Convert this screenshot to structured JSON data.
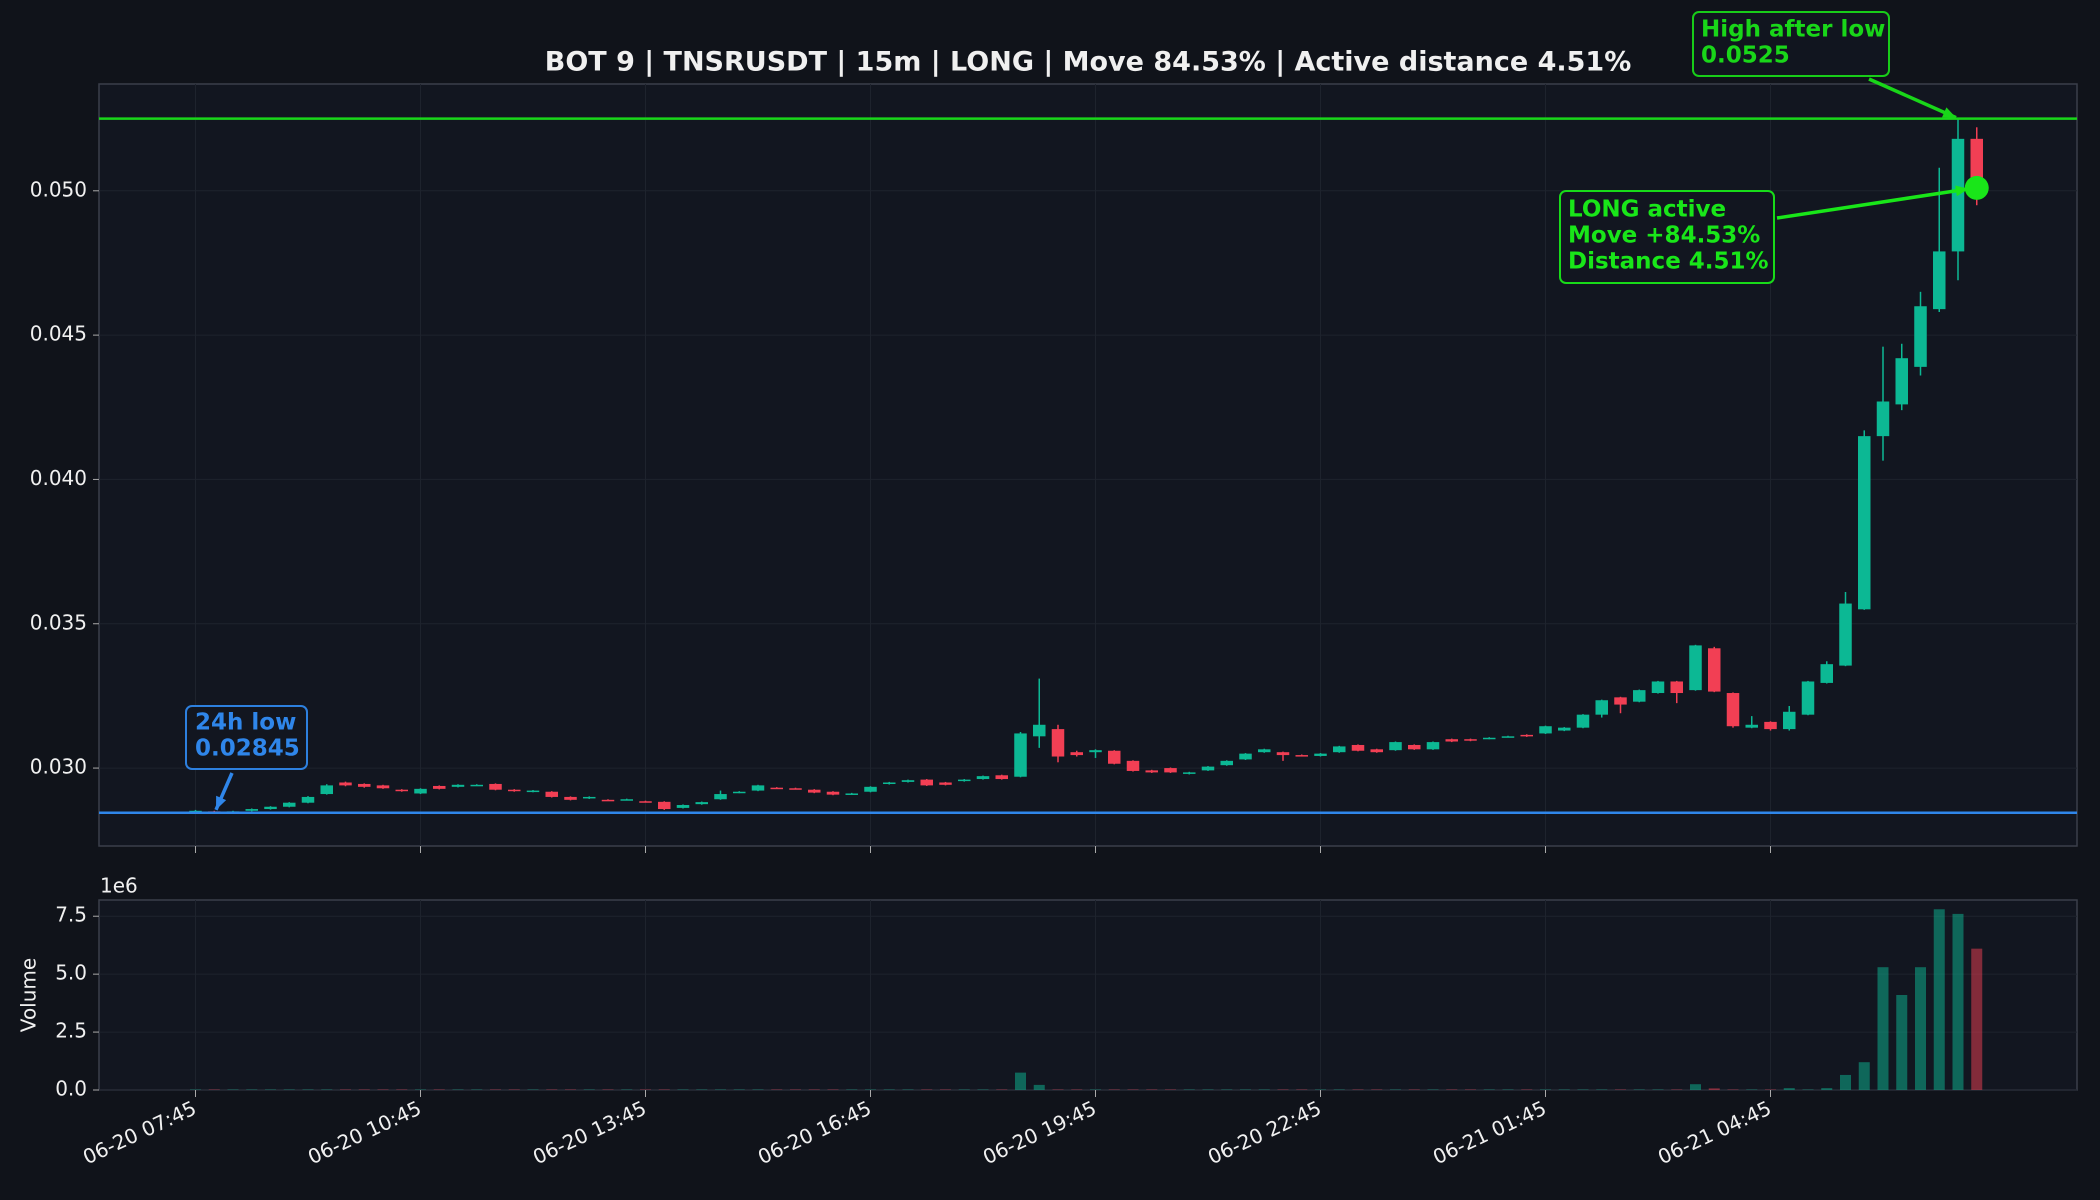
{
  "chart_data": {
    "type": "candlestick",
    "title": "BOT 9 | TNSRUSDT | 15m | LONG | Move 84.53% | Active distance 4.51%",
    "categories": [
      "06-20 07:45",
      null,
      null,
      null,
      null,
      null,
      null,
      null,
      null,
      null,
      null,
      null,
      "06-20 10:45",
      null,
      null,
      null,
      null,
      null,
      null,
      null,
      null,
      null,
      null,
      null,
      "06-20 13:45",
      null,
      null,
      null,
      null,
      null,
      null,
      null,
      null,
      null,
      null,
      null,
      "06-20 16:45",
      null,
      null,
      null,
      null,
      null,
      null,
      null,
      null,
      null,
      null,
      null,
      "06-20 19:45",
      null,
      null,
      null,
      null,
      null,
      null,
      null,
      null,
      null,
      null,
      null,
      "06-20 22:45",
      null,
      null,
      null,
      null,
      null,
      null,
      null,
      null,
      null,
      null,
      null,
      "06-21 01:45",
      null,
      null,
      null,
      null,
      null,
      null,
      null,
      null,
      null,
      null,
      null,
      "06-21 04:45",
      null,
      null,
      null,
      null,
      null,
      null,
      null,
      null,
      null,
      null,
      null
    ],
    "open": [
      0.0285,
      0.0285,
      0.02847,
      0.02852,
      0.02858,
      0.02866,
      0.0288,
      0.0291,
      0.0295,
      0.02945,
      0.0294,
      0.02925,
      0.02912,
      0.02938,
      0.02935,
      0.0294,
      0.02945,
      0.02925,
      0.02918,
      0.02918,
      0.029,
      0.02895,
      0.0289,
      0.0289,
      0.02885,
      0.02883,
      0.02862,
      0.02875,
      0.02892,
      0.02915,
      0.02922,
      0.02932,
      0.0293,
      0.02925,
      0.02918,
      0.0291,
      0.02918,
      0.02945,
      0.02952,
      0.0296,
      0.0295,
      0.02955,
      0.02962,
      0.02975,
      0.0297,
      0.0311,
      0.03135,
      0.03055,
      0.03055,
      0.0306,
      0.03025,
      0.02992,
      0.03,
      0.0298,
      0.02992,
      0.0301,
      0.0303,
      0.03055,
      0.03055,
      0.03045,
      0.03042,
      0.03055,
      0.0308,
      0.03065,
      0.03062,
      0.0308,
      0.03065,
      0.031,
      0.031,
      0.03102,
      0.03108,
      0.03115,
      0.0312,
      0.0313,
      0.0314,
      0.03185,
      0.03245,
      0.0323,
      0.0326,
      0.033,
      0.0327,
      0.03415,
      0.0326,
      0.0314,
      0.0316,
      0.03135,
      0.03185,
      0.03295,
      0.03355,
      0.0355,
      0.0415,
      0.0426,
      0.0439,
      0.0459,
      0.0479,
      0.0518
    ],
    "high": [
      0.02855,
      0.02852,
      0.02852,
      0.0286,
      0.02868,
      0.02882,
      0.02903,
      0.02944,
      0.02953,
      0.02947,
      0.02942,
      0.02927,
      0.0293,
      0.0294,
      0.02944,
      0.02944,
      0.02947,
      0.02927,
      0.02924,
      0.0292,
      0.02902,
      0.02902,
      0.02892,
      0.02894,
      0.02887,
      0.02885,
      0.02874,
      0.02884,
      0.02922,
      0.0292,
      0.02942,
      0.02934,
      0.02932,
      0.02927,
      0.0292,
      0.02914,
      0.02937,
      0.02952,
      0.0296,
      0.02962,
      0.02952,
      0.02962,
      0.02974,
      0.02977,
      0.03125,
      0.0331,
      0.0315,
      0.0306,
      0.03065,
      0.03062,
      0.03027,
      0.02994,
      0.03002,
      0.02987,
      0.03007,
      0.03027,
      0.03052,
      0.03067,
      0.03057,
      0.03047,
      0.03052,
      0.03077,
      0.03082,
      0.03067,
      0.03092,
      0.03082,
      0.03092,
      0.03102,
      0.03102,
      0.03107,
      0.03112,
      0.03117,
      0.03147,
      0.03142,
      0.03187,
      0.03237,
      0.03247,
      0.03272,
      0.03302,
      0.03302,
      0.03427,
      0.0342,
      0.03262,
      0.0318,
      0.03162,
      0.03215,
      0.03302,
      0.0337,
      0.0361,
      0.0417,
      0.0446,
      0.0447,
      0.0465,
      0.0508,
      0.0525,
      0.0522
    ],
    "low": [
      0.02847,
      0.02845,
      0.02846,
      0.0285,
      0.02856,
      0.02864,
      0.02878,
      0.02908,
      0.02937,
      0.02932,
      0.02928,
      0.02918,
      0.0291,
      0.02926,
      0.02933,
      0.02938,
      0.02923,
      0.02918,
      0.02916,
      0.02898,
      0.02888,
      0.02893,
      0.02886,
      0.02888,
      0.02881,
      0.02855,
      0.0286,
      0.02873,
      0.0289,
      0.02913,
      0.0292,
      0.02928,
      0.02926,
      0.02913,
      0.02906,
      0.02908,
      0.02916,
      0.02943,
      0.0295,
      0.02938,
      0.0294,
      0.02953,
      0.0296,
      0.0296,
      0.02968,
      0.0307,
      0.0302,
      0.0304,
      0.03035,
      0.03013,
      0.02988,
      0.02983,
      0.02983,
      0.02978,
      0.0299,
      0.03008,
      0.03028,
      0.03053,
      0.03025,
      0.0304,
      0.0304,
      0.03053,
      0.03058,
      0.03053,
      0.0306,
      0.03063,
      0.03063,
      0.0309,
      0.03093,
      0.031,
      0.03106,
      0.03108,
      0.03118,
      0.03128,
      0.03138,
      0.03175,
      0.0319,
      0.03228,
      0.03258,
      0.03225,
      0.03268,
      0.03263,
      0.0314,
      0.03138,
      0.0313,
      0.0313,
      0.03183,
      0.03293,
      0.03353,
      0.03548,
      0.04065,
      0.0424,
      0.0436,
      0.0458,
      0.0469,
      0.0495
    ],
    "close": [
      0.02852,
      0.02847,
      0.0285,
      0.02858,
      0.02866,
      0.0288,
      0.029,
      0.0294,
      0.0294,
      0.02935,
      0.0293,
      0.0292,
      0.02928,
      0.02928,
      0.02942,
      0.02942,
      0.02925,
      0.0292,
      0.02922,
      0.029,
      0.0289,
      0.029,
      0.02888,
      0.02892,
      0.02883,
      0.02858,
      0.02872,
      0.02882,
      0.0291,
      0.02918,
      0.0294,
      0.0293,
      0.02928,
      0.02915,
      0.02908,
      0.02912,
      0.02935,
      0.0295,
      0.02958,
      0.0294,
      0.02942,
      0.0296,
      0.02972,
      0.02962,
      0.0312,
      0.0315,
      0.0304,
      0.03045,
      0.03062,
      0.03015,
      0.0299,
      0.02985,
      0.02985,
      0.02985,
      0.03005,
      0.03025,
      0.0305,
      0.03065,
      0.03045,
      0.03042,
      0.0305,
      0.03075,
      0.0306,
      0.03055,
      0.0309,
      0.03065,
      0.0309,
      0.03092,
      0.03095,
      0.03105,
      0.0311,
      0.0311,
      0.03145,
      0.0314,
      0.03185,
      0.03235,
      0.0322,
      0.0327,
      0.033,
      0.0326,
      0.03425,
      0.03265,
      0.03145,
      0.0315,
      0.03135,
      0.03195,
      0.033,
      0.0336,
      0.0357,
      0.0415,
      0.0427,
      0.0442,
      0.046,
      0.0479,
      0.0518,
      0.0501
    ],
    "volume": [
      0.02,
      0.02,
      0.02,
      0.02,
      0.02,
      0.02,
      0.02,
      0.02,
      0.02,
      0.02,
      0.02,
      0.02,
      0.02,
      0.02,
      0.02,
      0.02,
      0.02,
      0.02,
      0.02,
      0.02,
      0.02,
      0.02,
      0.02,
      0.02,
      0.02,
      0.02,
      0.02,
      0.02,
      0.02,
      0.02,
      0.02,
      0.02,
      0.02,
      0.02,
      0.02,
      0.02,
      0.02,
      0.02,
      0.02,
      0.02,
      0.02,
      0.02,
      0.02,
      0.02,
      0.75,
      0.22,
      0.02,
      0.02,
      0.02,
      0.02,
      0.02,
      0.02,
      0.02,
      0.02,
      0.02,
      0.02,
      0.02,
      0.02,
      0.02,
      0.02,
      0.02,
      0.02,
      0.02,
      0.02,
      0.02,
      0.02,
      0.02,
      0.02,
      0.02,
      0.02,
      0.02,
      0.02,
      0.02,
      0.02,
      0.02,
      0.02,
      0.02,
      0.02,
      0.02,
      0.02,
      0.25,
      0.07,
      0.02,
      0.02,
      0.02,
      0.08,
      0.02,
      0.08,
      0.65,
      1.2,
      5.3,
      4.1,
      5.3,
      7.8,
      7.6,
      6.1
    ],
    "up_color": "#0cb894",
    "down_color": "#f23f54",
    "ylim": [
      0.0273,
      0.0537
    ],
    "yticks": [
      {
        "value": 0.03,
        "label": "0.030"
      },
      0.035,
      {
        "value": 0.04,
        "label": "0.040"
      },
      0.045,
      {
        "value": 0.05,
        "label": "0.050"
      }
    ],
    "volume_ylim": [
      0,
      8.2
    ],
    "volume_yticks": [
      {
        "value": 0,
        "label": "0.0"
      },
      2.5,
      {
        "value": 5,
        "label": "5.0"
      },
      7.5
    ],
    "volume_label": "Volume",
    "volume_offset": "1e6",
    "grid": true,
    "low_line": {
      "label": "24h low",
      "value": 0.02845,
      "color": "#2f86ea"
    },
    "high_line": {
      "label": "High after low",
      "value": 0.0525,
      "color": "#19d619"
    },
    "status": {
      "lines": [
        "LONG active",
        "Move +84.53%",
        "Distance 4.51%"
      ],
      "marker": 0.0501,
      "color": "#19e619"
    }
  }
}
